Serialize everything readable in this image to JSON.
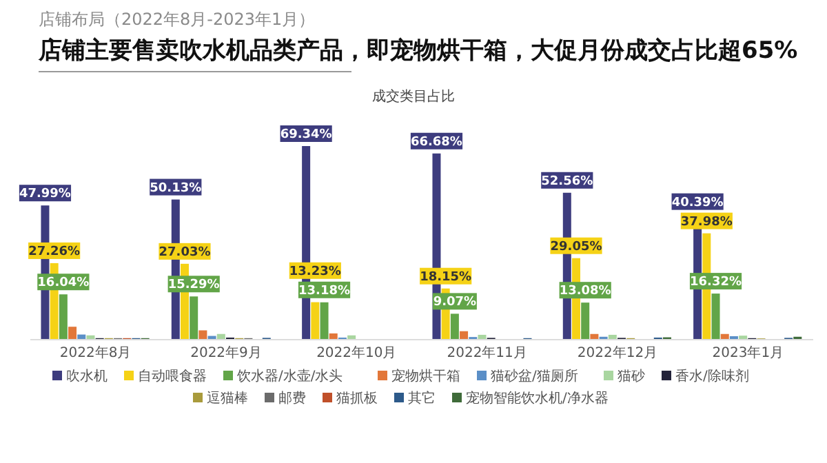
{
  "chart_data": {
    "type": "bar",
    "title": "店铺主要售卖吹水机品类产品，即宠物烘干箱，大促月份成交占比超65%",
    "subtitle": "成交类目占比",
    "annotations": [
      "店铺布局（2022年8月-2023年1月）"
    ],
    "categories": [
      "2022年8月",
      "2022年9月",
      "2022年10月",
      "2022年11月",
      "2022年12月",
      "2023年1月"
    ],
    "legend": "bottom",
    "series": [
      {
        "name": "吹水机",
        "color": "#3d3c7e",
        "values": [
          47.99,
          50.13,
          69.34,
          66.68,
          52.56,
          40.39
        ],
        "value_labels": [
          "47.99%",
          "50.13%",
          "69.34%",
          "66.68%",
          "52.56%",
          "40.39%"
        ]
      },
      {
        "name": "自动喂食器",
        "color": "#f5d216",
        "values": [
          27.26,
          27.03,
          13.23,
          18.15,
          29.05,
          37.98
        ],
        "value_labels": [
          "27.26%",
          "27.03%",
          "13.23%",
          "18.15%",
          "29.05%",
          "37.98%"
        ]
      },
      {
        "name": "饮水器/水壶/水头",
        "color": "#62a548",
        "values": [
          16.04,
          15.29,
          13.18,
          9.07,
          13.08,
          16.32
        ],
        "value_labels": [
          "16.04%",
          "15.29%",
          "13.18%",
          "9.07%",
          "13.08%",
          "16.32%"
        ]
      },
      {
        "name": "宠物烘干箱",
        "color": "#e2773a",
        "values": [
          4.4,
          3.1,
          2.0,
          2.8,
          1.8,
          1.8
        ]
      },
      {
        "name": "猫砂盆/猫厕所",
        "color": "#5b8fc7",
        "values": [
          1.6,
          1.1,
          0.5,
          0.7,
          0.8,
          1.0
        ]
      },
      {
        "name": "猫砂",
        "color": "#a9d6a0",
        "values": [
          1.3,
          1.8,
          1.3,
          1.5,
          1.5,
          1.2
        ]
      },
      {
        "name": "香水/除味剂",
        "color": "#23233a",
        "values": [
          0.3,
          0.5,
          0,
          0.4,
          0.4,
          0.3
        ]
      },
      {
        "name": "逗猫棒",
        "color": "#a99b3c",
        "values": [
          0.3,
          0.3,
          0,
          0,
          0.3,
          0.2
        ]
      },
      {
        "name": "邮费",
        "color": "#6b6b6b",
        "values": [
          0.3,
          0.3,
          0,
          0,
          0,
          0
        ]
      },
      {
        "name": "猫抓板",
        "color": "#c0502a",
        "values": [
          0.3,
          0,
          0,
          0,
          0,
          0
        ]
      },
      {
        "name": "其它",
        "color": "#2d5a8a",
        "values": [
          0.3,
          0.4,
          0,
          0.3,
          0.5,
          0.4
        ]
      },
      {
        "name": "宠物智能饮水机/净水器",
        "color": "#3f6b3a",
        "values": [
          0.3,
          0,
          0,
          0,
          0.6,
          0.8
        ]
      }
    ]
  }
}
